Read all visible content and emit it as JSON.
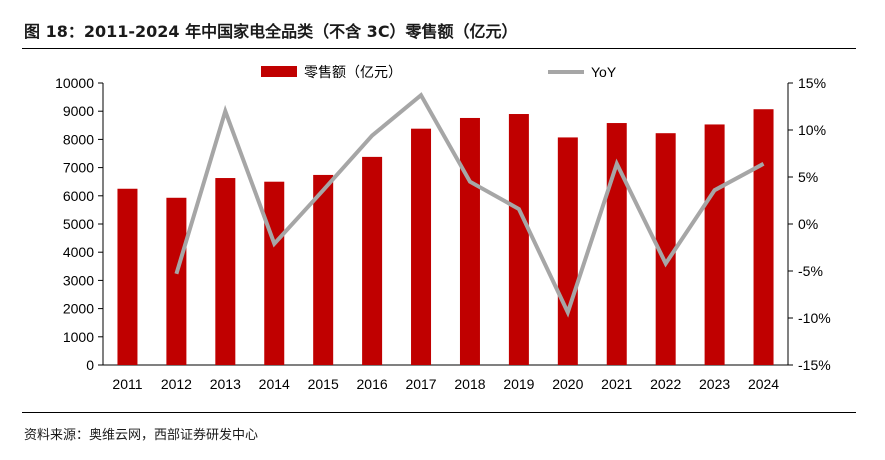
{
  "figure": {
    "title": "图 18：2011-2024 年中国家电全品类（不含 3C）零售额（亿元）",
    "source": "资料来源：奥维云网，西部证券研发中心"
  },
  "chart_data": {
    "type": "bar",
    "categories": [
      "2011",
      "2012",
      "2013",
      "2014",
      "2015",
      "2016",
      "2017",
      "2018",
      "2019",
      "2020",
      "2021",
      "2022",
      "2023",
      "2024"
    ],
    "series": [
      {
        "name": "零售额（亿元）",
        "type": "bar",
        "axis": "left",
        "color": "#c00000",
        "values": [
          6250,
          5930,
          6630,
          6500,
          6740,
          7380,
          8380,
          8760,
          8900,
          8070,
          8580,
          8220,
          8530,
          9070
        ]
      },
      {
        "name": "YoY",
        "type": "line",
        "axis": "right",
        "color": "#a6a6a6",
        "values": [
          null,
          -5.3,
          12.0,
          -2.1,
          3.6,
          9.4,
          13.7,
          4.5,
          1.6,
          -9.4,
          6.4,
          -4.2,
          3.6,
          6.4
        ]
      }
    ],
    "y_left": {
      "ylim": [
        0,
        10000
      ],
      "ticks": [
        "0",
        "1000",
        "2000",
        "3000",
        "4000",
        "5000",
        "6000",
        "7000",
        "8000",
        "9000",
        "10000"
      ]
    },
    "y_right": {
      "ylim": [
        -15,
        15
      ],
      "ticks": [
        "-15%",
        "-10%",
        "-5%",
        "0%",
        "5%",
        "10%",
        "15%"
      ]
    },
    "legend": "top-center",
    "grid": false
  }
}
